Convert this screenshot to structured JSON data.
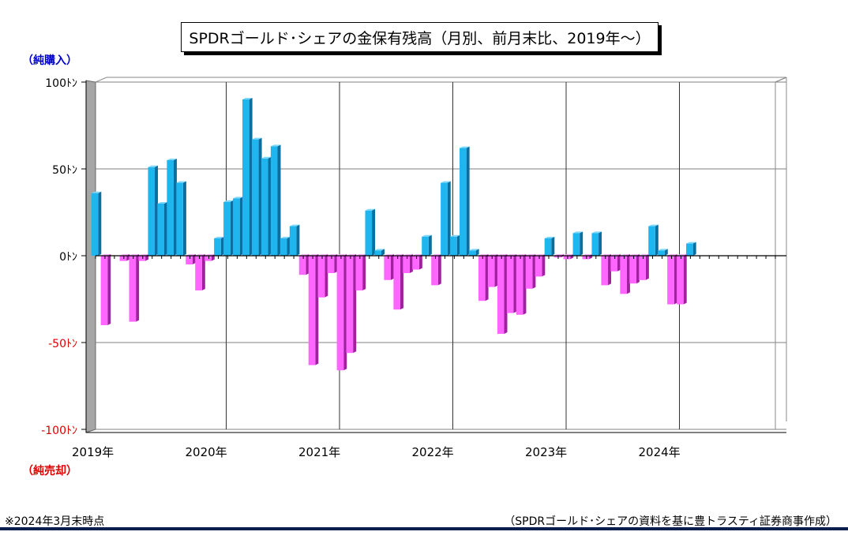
{
  "title": "SPDRゴールド･シェアの金保有残高（月別、前月末比、2019年～）",
  "labels": {
    "net_buy": "（純購入）",
    "net_sell": "（純売却）"
  },
  "footnotes": {
    "left": "※2024年3月末時点",
    "right": "（SPDRゴールド･シェアの資料を基に豊トラスティ証券商事作成）"
  },
  "colors": {
    "positive": "#1fb6f0",
    "negative": "#ff66ff",
    "positive_label": "#0000cc",
    "negative_label": "#dd0000",
    "rule": "#0b1f4e"
  },
  "chart_data": {
    "type": "bar",
    "unit": "ﾄﾝ",
    "ylim": [
      -100,
      100
    ],
    "yticks": [
      {
        "value": 100,
        "label": "100ﾄﾝ"
      },
      {
        "value": 50,
        "label": "50ﾄﾝ"
      },
      {
        "value": 0,
        "label": "0ﾄﾝ"
      },
      {
        "value": -50,
        "label": "-50ﾄﾝ"
      },
      {
        "value": -100,
        "label": "-100ﾄﾝ"
      }
    ],
    "xtick_labels": [
      "2019年",
      "2020年",
      "2021年",
      "2022年",
      "2023年",
      "2024年"
    ],
    "grid": true,
    "months_per_year": 12,
    "total_slots": 72,
    "values": [
      36,
      -40,
      0,
      -3,
      -38,
      -3,
      51,
      30,
      55,
      42,
      -5,
      -20,
      -3,
      10,
      31,
      33,
      90,
      67,
      56,
      63,
      10,
      17,
      -11,
      -63,
      -24,
      -10,
      -66,
      -56,
      -20,
      26,
      3,
      -14,
      -31,
      -10,
      -8,
      11,
      -17,
      42,
      11,
      62,
      3,
      -26,
      -18,
      -45,
      -33,
      -34,
      -19,
      -12,
      10,
      -1,
      -2,
      13,
      -2,
      13,
      -17,
      -9,
      -22,
      -16,
      -14,
      17,
      3,
      -28,
      -28,
      7
    ]
  }
}
